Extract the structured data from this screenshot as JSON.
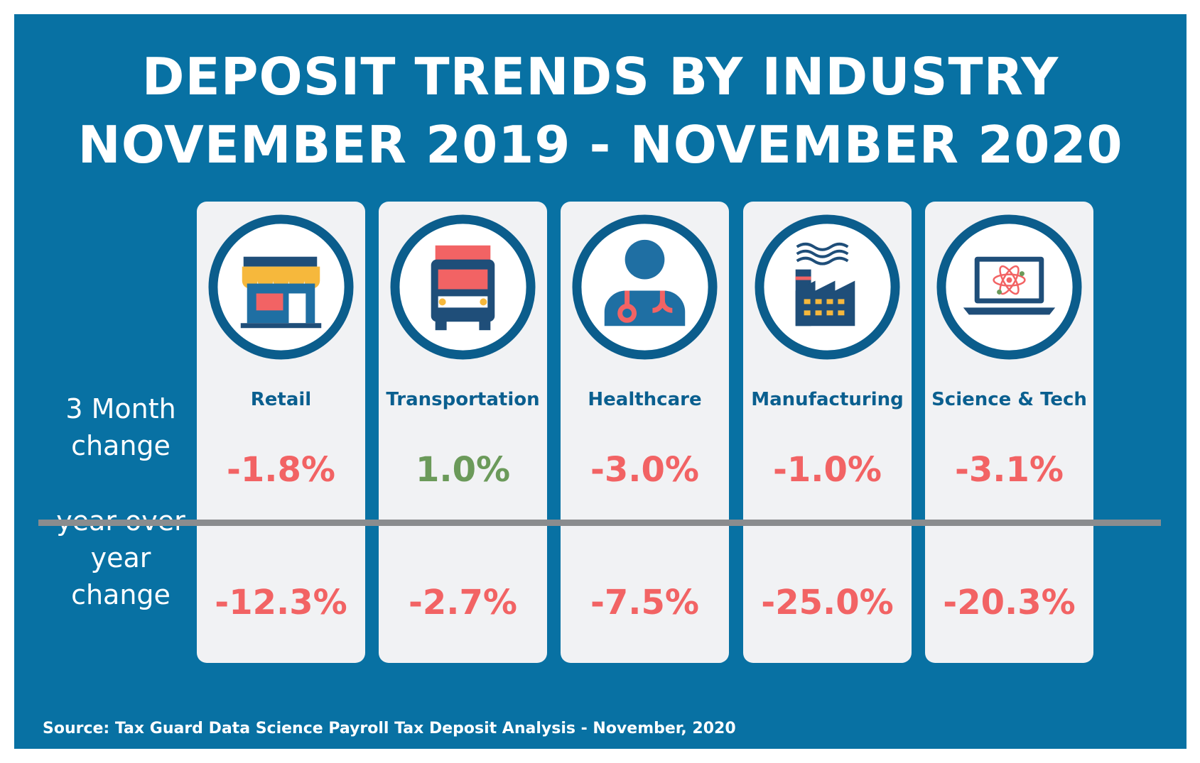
{
  "title": {
    "line1": "DEPOSIT TRENDS BY INDUSTRY",
    "line2": "NOVEMBER 2019 - NOVEMBER 2020"
  },
  "row_labels": {
    "three_month": [
      "3 Month",
      "change"
    ],
    "yoy": [
      "year over",
      "year",
      "change"
    ]
  },
  "colors": {
    "background": "#0871a3",
    "card": "#f1f2f4",
    "negative": "#f26364",
    "positive": "#6b9a5a",
    "industry_label": "#0a5f8f",
    "divider": "#8a8c8e"
  },
  "chart_data": {
    "type": "table",
    "columns": [
      "Retail",
      "Transportation",
      "Healthcare",
      "Manufacturing",
      "Science & Tech"
    ],
    "rows": [
      {
        "name": "3 Month change",
        "values": [
          "-1.8%",
          "1.0%",
          "-3.0%",
          "-1.0%",
          "-3.1%"
        ]
      },
      {
        "name": "year over year change",
        "values": [
          "-12.3%",
          "-2.7%",
          "-7.5%",
          "-25.0%",
          "-20.3%"
        ]
      }
    ],
    "icons": [
      "store-icon",
      "truck-icon",
      "doctor-icon",
      "factory-icon",
      "laptop-atom-icon"
    ]
  },
  "source": "Source: Tax Guard Data Science Payroll Tax Deposit Analysis - November, 2020"
}
